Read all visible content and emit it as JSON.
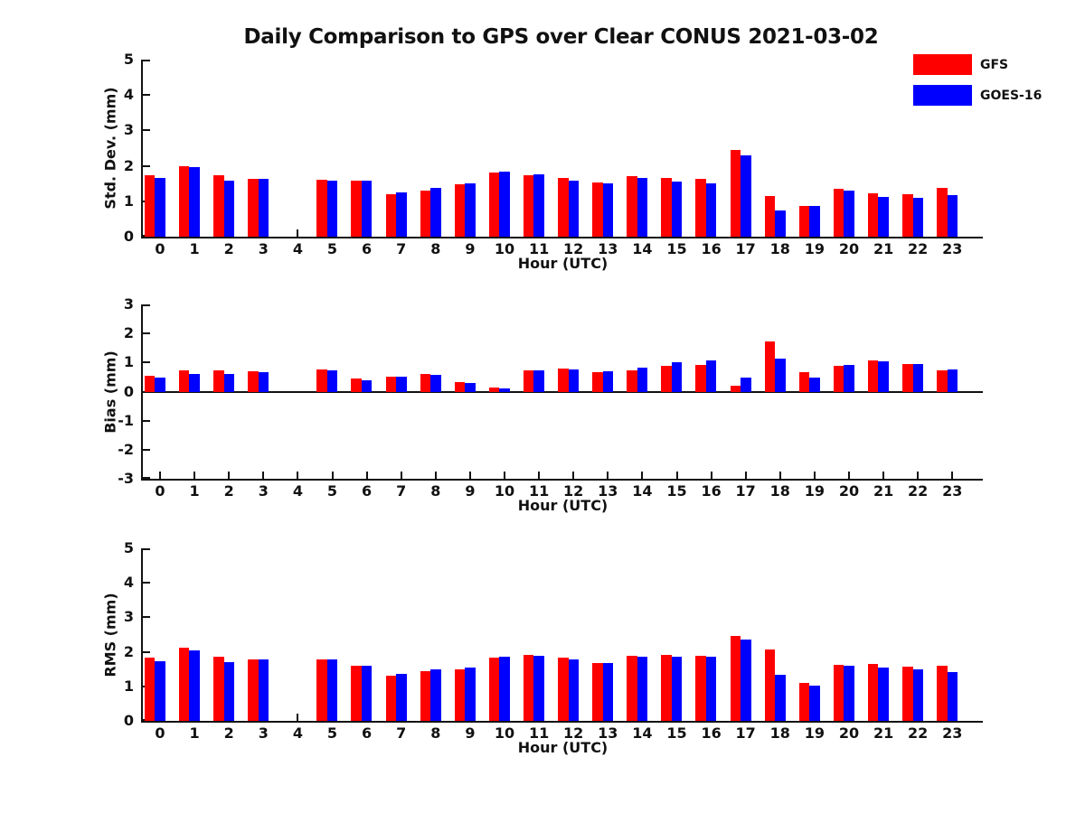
{
  "title": "Daily Comparison to GPS over Clear CONUS 2021-03-02",
  "legend": {
    "position": "top-right",
    "items": [
      {
        "label": "GFS",
        "color": "#ff0000"
      },
      {
        "label": "GOES-16",
        "color": "#0000ff"
      }
    ]
  },
  "colors": {
    "gfs": "#ff0000",
    "goes16": "#0000ff",
    "axis": "#111111",
    "background": "#ffffff"
  },
  "chart_data": [
    {
      "type": "bar",
      "subplot": "std-dev",
      "ylabel": "Std. Dev. (mm)",
      "xlabel": "Hour (UTC)",
      "ylim": [
        0,
        5
      ],
      "yticks": [
        0,
        1,
        2,
        3,
        4,
        5
      ],
      "grid": false,
      "categories": [
        "0",
        "1",
        "2",
        "3",
        "4",
        "5",
        "6",
        "7",
        "8",
        "9",
        "10",
        "11",
        "12",
        "13",
        "14",
        "15",
        "16",
        "17",
        "18",
        "19",
        "20",
        "21",
        "22",
        "23"
      ],
      "series": [
        {
          "name": "GFS",
          "color": "#ff0000",
          "values": [
            1.74,
            2.0,
            1.73,
            1.64,
            null,
            1.6,
            1.57,
            1.2,
            1.3,
            1.48,
            1.81,
            1.74,
            1.66,
            1.53,
            1.7,
            1.65,
            1.63,
            2.46,
            1.14,
            0.88,
            1.34,
            1.22,
            1.19,
            1.39
          ]
        },
        {
          "name": "GOES-16",
          "color": "#0000ff",
          "values": [
            1.66,
            1.96,
            1.58,
            1.64,
            null,
            1.58,
            1.57,
            1.26,
            1.38,
            1.51,
            1.83,
            1.76,
            1.57,
            1.5,
            1.65,
            1.55,
            1.5,
            2.3,
            0.75,
            0.88,
            1.29,
            1.13,
            1.09,
            1.17
          ]
        }
      ]
    },
    {
      "type": "bar",
      "subplot": "bias",
      "ylabel": "Bias (mm)",
      "xlabel": "Hour (UTC)",
      "ylim": [
        -3,
        3
      ],
      "yticks": [
        -3,
        -2,
        -1,
        0,
        1,
        2,
        3
      ],
      "grid": false,
      "categories": [
        "0",
        "1",
        "2",
        "3",
        "4",
        "5",
        "6",
        "7",
        "8",
        "9",
        "10",
        "11",
        "12",
        "13",
        "14",
        "15",
        "16",
        "17",
        "18",
        "19",
        "20",
        "21",
        "22",
        "23"
      ],
      "series": [
        {
          "name": "GFS",
          "color": "#ff0000",
          "values": [
            0.55,
            0.72,
            0.73,
            0.71,
            null,
            0.77,
            0.45,
            0.52,
            0.62,
            0.34,
            0.15,
            0.74,
            0.8,
            0.66,
            0.74,
            0.88,
            0.92,
            0.19,
            1.72,
            0.68,
            0.89,
            1.07,
            0.95,
            0.73
          ]
        },
        {
          "name": "GOES-16",
          "color": "#0000ff",
          "values": [
            0.48,
            0.62,
            0.61,
            0.66,
            null,
            0.74,
            0.4,
            0.52,
            0.59,
            0.3,
            0.12,
            0.72,
            0.76,
            0.71,
            0.82,
            1.02,
            1.07,
            0.49,
            1.12,
            0.49,
            0.93,
            1.03,
            0.95,
            0.77
          ]
        }
      ]
    },
    {
      "type": "bar",
      "subplot": "rms",
      "ylabel": "RMS (mm)",
      "xlabel": "Hour (UTC)",
      "ylim": [
        0,
        5
      ],
      "yticks": [
        0,
        1,
        2,
        3,
        4,
        5
      ],
      "grid": false,
      "categories": [
        "0",
        "1",
        "2",
        "3",
        "4",
        "5",
        "6",
        "7",
        "8",
        "9",
        "10",
        "11",
        "12",
        "13",
        "14",
        "15",
        "16",
        "17",
        "18",
        "19",
        "20",
        "21",
        "22",
        "23"
      ],
      "series": [
        {
          "name": "GFS",
          "color": "#ff0000",
          "values": [
            1.82,
            2.12,
            1.86,
            1.78,
            null,
            1.77,
            1.61,
            1.32,
            1.45,
            1.5,
            1.83,
            1.9,
            1.82,
            1.68,
            1.89,
            1.91,
            1.89,
            2.47,
            2.06,
            1.1,
            1.62,
            1.64,
            1.57,
            1.6
          ]
        },
        {
          "name": "GOES-16",
          "color": "#0000ff",
          "values": [
            1.74,
            2.05,
            1.71,
            1.77,
            null,
            1.77,
            1.6,
            1.35,
            1.49,
            1.54,
            1.85,
            1.89,
            1.77,
            1.68,
            1.86,
            1.87,
            1.87,
            2.36,
            1.34,
            1.02,
            1.6,
            1.55,
            1.5,
            1.41
          ]
        }
      ]
    }
  ]
}
